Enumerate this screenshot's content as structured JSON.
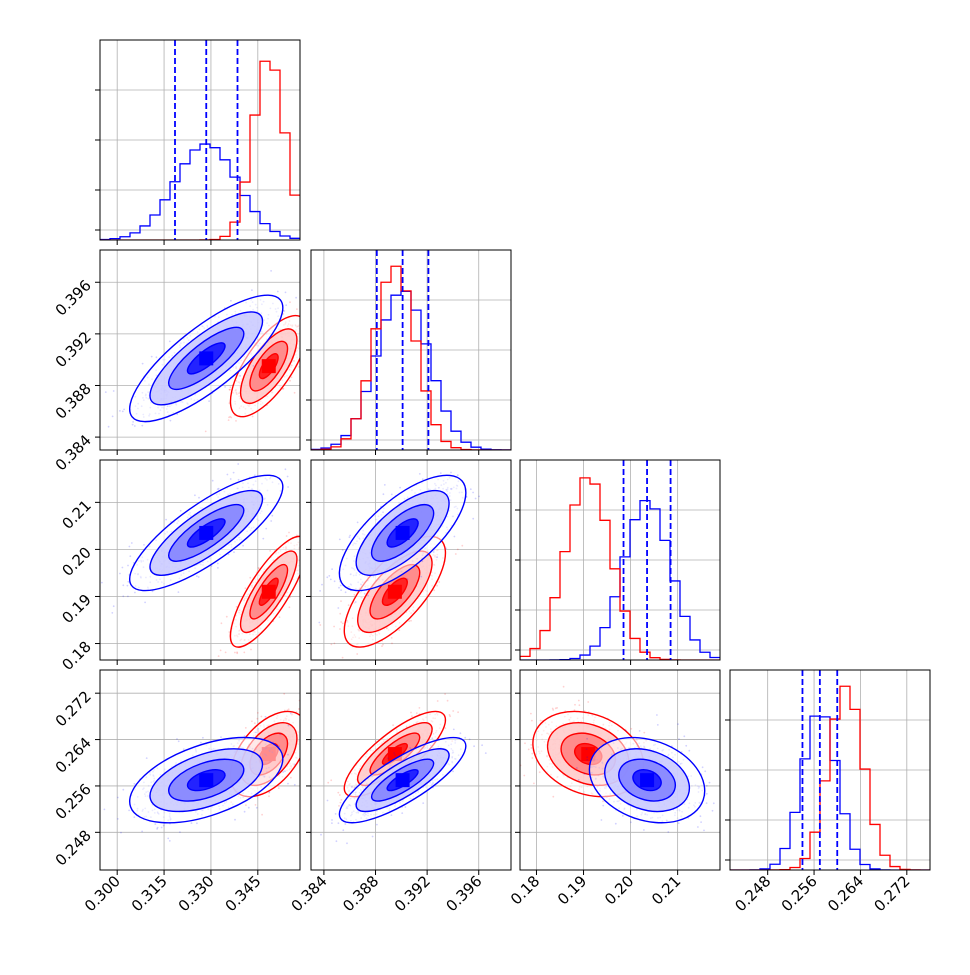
{
  "chart_data": {
    "type": "corner",
    "parameters": 4,
    "grid": true,
    "colors": {
      "blue": "#0000ff",
      "red": "#ff0000"
    },
    "series": [
      {
        "color": "#0000ff",
        "mean": [
          0.3285,
          0.3901,
          0.2035,
          0.257
        ],
        "sd": [
          0.01,
          0.002,
          0.005,
          0.003
        ],
        "quantiles_shown": true
      },
      {
        "color": "#ff0000",
        "mean": [
          0.3485,
          0.3895,
          0.191,
          0.2615
        ],
        "sd": [
          0.005,
          0.0016,
          0.0048,
          0.003
        ],
        "quantiles_shown": false
      }
    ],
    "correlations": {
      "1-0": {
        "blue": 0.8,
        "red": 0.7
      },
      "2-0": {
        "blue": 0.8,
        "red": 0.8
      },
      "2-1": {
        "blue": 0.7,
        "red": 0.7
      },
      "3-0": {
        "blue": 0.5,
        "red": 0.5
      },
      "3-1": {
        "blue": 0.8,
        "red": 0.8
      },
      "3-2": {
        "blue": -0.25,
        "red": -0.25
      }
    },
    "quantile_lines_blue": [
      [
        0.3185,
        0.3285,
        0.3385
      ],
      [
        0.3881,
        0.3901,
        0.3921
      ],
      [
        0.1985,
        0.2035,
        0.2085
      ],
      [
        0.254,
        0.257,
        0.26
      ]
    ],
    "histograms_1d": [
      {
        "blue_peak_bin": 0.3285,
        "red_peak_bin": 0.3485
      },
      {
        "blue_peak_bin": 0.3901,
        "red_peak_bin": 0.3895
      },
      {
        "blue_peak_bin": 0.2035,
        "red_peak_bin": 0.191
      },
      {
        "blue_peak_bin": 0.257,
        "red_peak_bin": 0.2615
      }
    ],
    "axes": [
      {
        "range": [
          0.2945,
          0.3585
        ],
        "ticks": [
          0.3,
          0.315,
          0.33,
          0.345
        ],
        "tick_labels": [
          "0.300",
          "0.315",
          "0.330",
          "0.345"
        ]
      },
      {
        "range": [
          0.383,
          0.3985
        ],
        "ticks": [
          0.384,
          0.388,
          0.392,
          0.396
        ],
        "tick_labels": [
          "0.384",
          "0.388",
          "0.392",
          "0.396"
        ]
      },
      {
        "range": [
          0.1765,
          0.219
        ],
        "ticks": [
          0.18,
          0.19,
          0.2,
          0.21
        ],
        "tick_labels": [
          "0.18",
          "0.19",
          "0.20",
          "0.21"
        ]
      },
      {
        "range": [
          0.2415,
          0.276
        ],
        "ticks": [
          0.248,
          0.256,
          0.264,
          0.272
        ],
        "tick_labels": [
          "0.248",
          "0.256",
          "0.264",
          "0.272"
        ]
      }
    ]
  }
}
